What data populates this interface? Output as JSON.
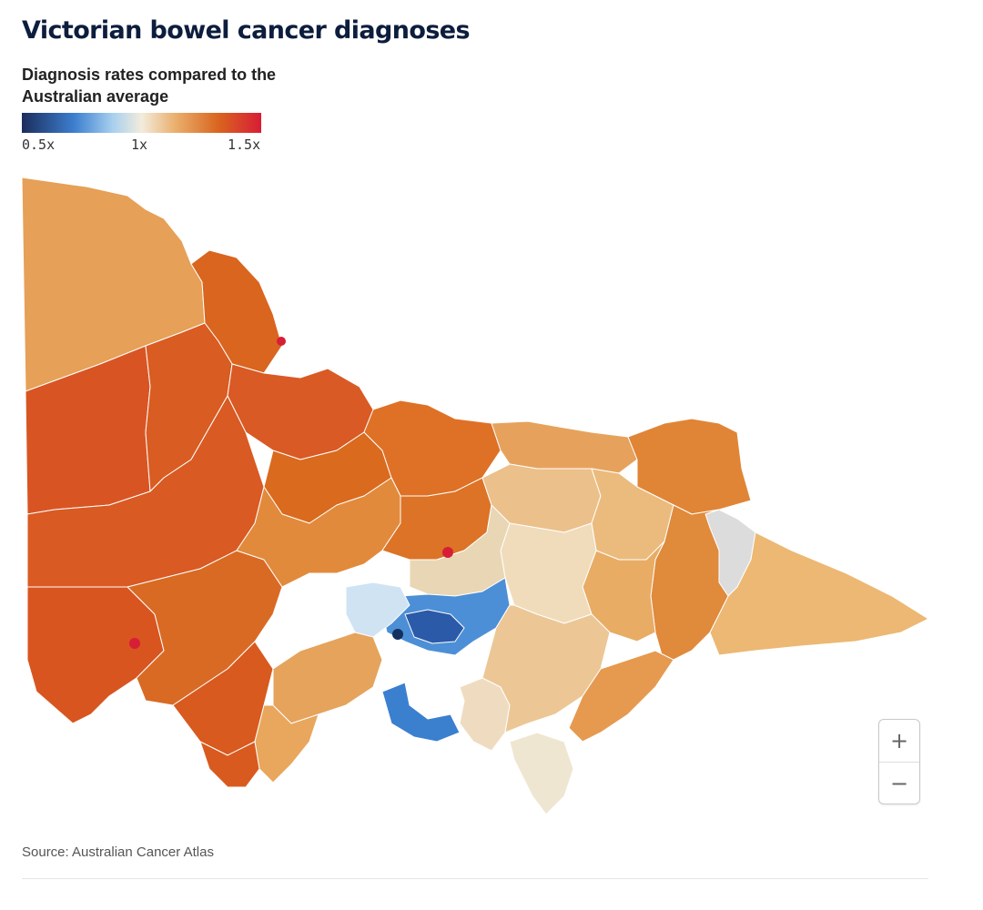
{
  "title": "Victorian bowel cancer diagnoses",
  "legend": {
    "title": "Diagnosis rates compared to the Australian average",
    "ticks": [
      "0.5x",
      "1x",
      "1.5x"
    ],
    "scale_min": 0.5,
    "scale_mid": 1.0,
    "scale_max": 1.5,
    "colors": [
      "#1b2d5c",
      "#3d7fd0",
      "#a8d0ee",
      "#f2ecdc",
      "#eab06e",
      "#d9651f",
      "#d81d36"
    ]
  },
  "map": {
    "region": "Victoria",
    "no_data_color": "#dcdcdc",
    "border_color": "#ffffff"
  },
  "zoom": {
    "in_label": "+",
    "out_label": "−"
  },
  "source": "Source: Australian Cancer Atlas"
}
